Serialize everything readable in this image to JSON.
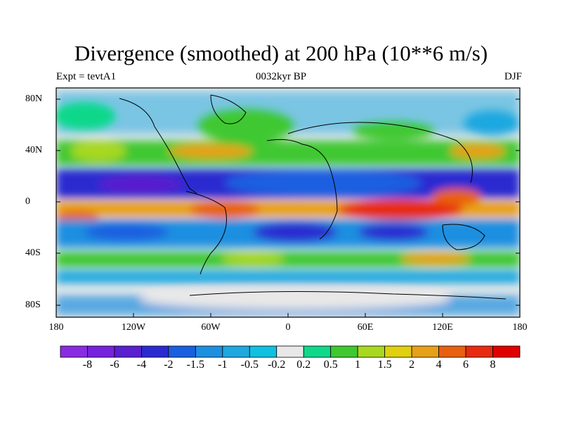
{
  "title": "Divergence (smoothed) at 200 hPa (10**6 m/s)",
  "subtitle_left": "Expt = tevtA1",
  "subtitle_center": "0032kyr BP",
  "subtitle_right": "DJF",
  "lat_labels": [
    "80N",
    "40N",
    "0",
    "40S",
    "80S"
  ],
  "lon_labels": [
    "180",
    "120W",
    "60W",
    "0",
    "60E",
    "120E",
    "180"
  ],
  "colorbar": {
    "labels": [
      "-8",
      "-6",
      "-4",
      "-2",
      "-1.5",
      "-1",
      "-0.5",
      "-0.2",
      "0.2",
      "0.5",
      "1",
      "1.5",
      "2",
      "4",
      "6",
      "8"
    ],
    "colors": [
      "#8a2be2",
      "#7722dd",
      "#5a1fcf",
      "#2a2ad0",
      "#1a5fe0",
      "#1e8fe0",
      "#1ea8e0",
      "#10c0e0",
      "#e8e8e8",
      "#10d88a",
      "#40c830",
      "#a8d820",
      "#e0d010",
      "#e8a018",
      "#e86010",
      "#e82a10",
      "#e00000"
    ]
  },
  "legend_colors": {
    "land_outline": "#000000",
    "neutral": "#e8e8e8"
  }
}
